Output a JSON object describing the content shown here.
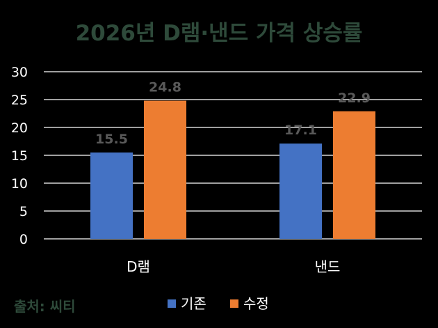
{
  "chart_data": {
    "type": "bar",
    "title": "2026년 D램·낸드 가격 상승률",
    "categories": [
      "D램",
      "낸드"
    ],
    "series": [
      {
        "name": "기존",
        "values": [
          15.5,
          17.1
        ],
        "color": "#4472C4"
      },
      {
        "name": "수정",
        "values": [
          24.8,
          22.9
        ],
        "color": "#ED7D31"
      }
    ],
    "data_labels": [
      [
        "15.5",
        "17.1"
      ],
      [
        "24.8",
        "22.9"
      ]
    ],
    "y_ticks": [
      "0",
      "5",
      "10",
      "15",
      "20",
      "25",
      "30"
    ],
    "ylim": [
      0,
      30
    ],
    "grid": true,
    "legend_position": "bottom-center",
    "source": "출처: 씨티"
  },
  "colors": {
    "background": "#000000",
    "title": "#2E4A3A",
    "tick_label": "#FFFFFF",
    "category_label": "#FFFFFF",
    "data_label": "#595959",
    "legend_text": "#FFFFFF",
    "source_text": "#2E4A3A",
    "gridline": "#FFFFFF"
  }
}
